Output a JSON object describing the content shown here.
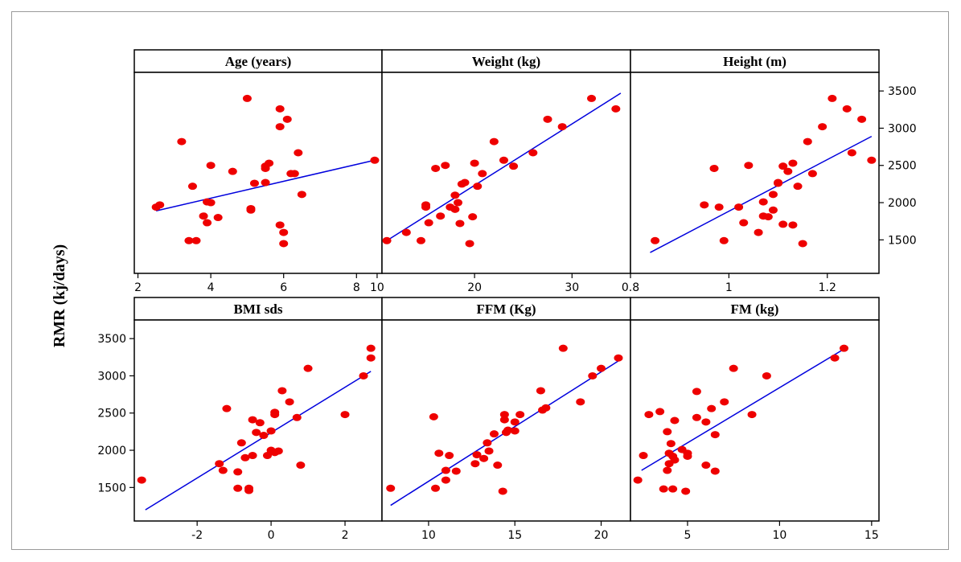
{
  "chart_data": {
    "type": "scatter",
    "ylabel": "RMR (kj/days)",
    "colors": {
      "points": "#ee0000",
      "fit_line": "#0000dd",
      "axis": "#000000"
    },
    "grid": false,
    "panels": [
      {
        "title": "Age (years)",
        "xlim": [
          1.9,
          8.7
        ],
        "xticks": [
          2,
          4,
          6,
          8
        ],
        "ylim": [
          1050,
          3750
        ],
        "yticks": [
          1500,
          2000,
          2500,
          3000,
          3500
        ],
        "fit": [
          [
            2.5,
            1890
          ],
          [
            8.5,
            2570
          ]
        ],
        "x": [
          2.5,
          2.6,
          3.2,
          3.5,
          3.4,
          3.6,
          3.8,
          3.9,
          3.9,
          4.0,
          4.0,
          4.2,
          4.6,
          5.0,
          5.1,
          5.1,
          5.2,
          5.5,
          5.5,
          5.5,
          5.6,
          5.9,
          5.9,
          5.9,
          6.0,
          6.0,
          6.1,
          6.2,
          6.3,
          6.4,
          6.5,
          8.5
        ],
        "y": [
          1940,
          1970,
          2820,
          2220,
          1490,
          1490,
          1820,
          2010,
          1730,
          2500,
          2000,
          1800,
          2420,
          3400,
          1900,
          1920,
          2260,
          2460,
          2490,
          2270,
          2530,
          3260,
          3020,
          1700,
          1600,
          1450,
          3120,
          2390,
          2390,
          2670,
          2110,
          2570
        ]
      },
      {
        "title": "Weight (kg)",
        "xlim": [
          10.5,
          36
        ],
        "xticks": [
          10,
          20,
          30
        ],
        "ylim": [
          1050,
          3750
        ],
        "yticks": [
          1500,
          2000,
          2500,
          3000,
          3500
        ],
        "fit": [
          [
            11,
            1490
          ],
          [
            35,
            3470
          ]
        ],
        "x": [
          11,
          13,
          14.5,
          15,
          15,
          15.3,
          16,
          16.5,
          17,
          17.5,
          18,
          18,
          18.3,
          18.5,
          18.7,
          19,
          19.5,
          19.8,
          20,
          20.3,
          20.8,
          22,
          23,
          24,
          26,
          27.5,
          29,
          32,
          34.5
        ],
        "y": [
          1490,
          1600,
          1490,
          1970,
          1940,
          1730,
          2460,
          1820,
          2500,
          1940,
          1910,
          2100,
          2000,
          1720,
          2250,
          2270,
          1450,
          1810,
          2530,
          2220,
          2390,
          2820,
          2570,
          2490,
          2670,
          3120,
          3020,
          3400,
          3260
        ]
      },
      {
        "title": "Height (m)",
        "xlim": [
          0.8,
          1.305
        ],
        "xticks": [
          0.8,
          1.0,
          1.2
        ],
        "ylim": [
          1050,
          3750
        ],
        "yticks": [
          1500,
          2000,
          2500,
          3000,
          3500
        ],
        "fit": [
          [
            0.84,
            1330
          ],
          [
            1.29,
            2890
          ]
        ],
        "x": [
          0.85,
          0.95,
          0.97,
          0.98,
          0.99,
          1.02,
          1.03,
          1.04,
          1.06,
          1.07,
          1.07,
          1.08,
          1.09,
          1.09,
          1.1,
          1.1,
          1.11,
          1.11,
          1.12,
          1.13,
          1.13,
          1.14,
          1.15,
          1.16,
          1.17,
          1.19,
          1.21,
          1.24,
          1.25,
          1.27,
          1.29
        ],
        "y": [
          1490,
          1970,
          2460,
          1940,
          1490,
          1940,
          1730,
          2500,
          1600,
          2010,
          1820,
          1810,
          2110,
          1900,
          2260,
          2270,
          2490,
          1710,
          2420,
          2530,
          1700,
          2220,
          1450,
          2820,
          2390,
          3020,
          3400,
          3260,
          2670,
          3120,
          2570
        ]
      },
      {
        "title": "BMI sds",
        "xlim": [
          -3.7,
          3.0
        ],
        "xticks": [
          -2,
          0,
          2
        ],
        "ylim": [
          1050,
          3750
        ],
        "yticks": [
          1500,
          2000,
          2500,
          3000,
          3500
        ],
        "fit": [
          [
            -3.4,
            1200
          ],
          [
            2.7,
            3060
          ]
        ],
        "x": [
          -3.5,
          -1.4,
          -1.3,
          -1.2,
          -0.9,
          -0.9,
          -0.8,
          -0.7,
          -0.6,
          -0.6,
          -0.5,
          -0.5,
          -0.4,
          -0.3,
          -0.2,
          -0.1,
          0.0,
          0.0,
          0.1,
          0.1,
          0.1,
          0.2,
          0.3,
          0.5,
          0.7,
          0.8,
          1.0,
          2.0,
          2.5,
          2.7,
          2.7
        ],
        "y": [
          1600,
          1820,
          1730,
          2560,
          1490,
          1710,
          2100,
          1900,
          1460,
          1490,
          2410,
          1930,
          2240,
          2370,
          2200,
          1930,
          2000,
          2260,
          2480,
          1970,
          2510,
          1990,
          2800,
          2650,
          2440,
          1800,
          3100,
          2480,
          3000,
          3240,
          3370
        ]
      },
      {
        "title": "FFM (Kg)",
        "xlim": [
          7.3,
          21.7
        ],
        "xticks": [
          10,
          15,
          20
        ],
        "ylim": [
          1050,
          3750
        ],
        "yticks": [
          1500,
          2000,
          2500,
          3000,
          3500
        ],
        "fit": [
          [
            7.8,
            1260
          ],
          [
            21,
            3200
          ]
        ],
        "x": [
          7.8,
          10.3,
          10.4,
          10.6,
          11.0,
          11.0,
          11.2,
          11.6,
          12.7,
          12.8,
          13.2,
          13.4,
          13.5,
          13.8,
          14.0,
          14.3,
          14.4,
          14.4,
          14.5,
          14.6,
          15.0,
          15.0,
          15.3,
          16.5,
          16.6,
          16.8,
          17.8,
          18.8,
          19.5,
          20.0,
          21.0
        ],
        "y": [
          1490,
          2450,
          1490,
          1960,
          1600,
          1730,
          1930,
          1720,
          1820,
          1940,
          1890,
          2100,
          1990,
          2220,
          1800,
          1450,
          2480,
          2410,
          2240,
          2270,
          2380,
          2260,
          2480,
          2800,
          2540,
          2570,
          3370,
          2650,
          3000,
          3100,
          3240
        ]
      },
      {
        "title": "FM (kg)",
        "xlim": [
          1.9,
          15.4
        ],
        "xticks": [
          5,
          10,
          15
        ],
        "ylim": [
          1050,
          3750
        ],
        "yticks": [
          1500,
          2000,
          2500,
          3000,
          3500
        ],
        "fit": [
          [
            2.5,
            1730
          ],
          [
            13.5,
            3360
          ]
        ],
        "x": [
          2.3,
          2.6,
          2.9,
          3.5,
          3.7,
          3.9,
          3.9,
          4.0,
          4.0,
          4.1,
          4.2,
          4.2,
          4.3,
          4.3,
          4.7,
          4.9,
          5.0,
          5.0,
          5.5,
          5.5,
          6.0,
          6.0,
          6.3,
          6.5,
          6.5,
          7.0,
          7.5,
          8.5,
          9.3,
          13.0,
          13.5
        ],
        "y": [
          1600,
          1930,
          2480,
          2520,
          1480,
          2250,
          1730,
          1960,
          1820,
          2090,
          1480,
          1920,
          2400,
          1870,
          2010,
          1450,
          1920,
          1960,
          2440,
          2790,
          1800,
          2380,
          2560,
          1720,
          2210,
          2650,
          3100,
          2480,
          3000,
          3240,
          3370
        ]
      }
    ]
  }
}
